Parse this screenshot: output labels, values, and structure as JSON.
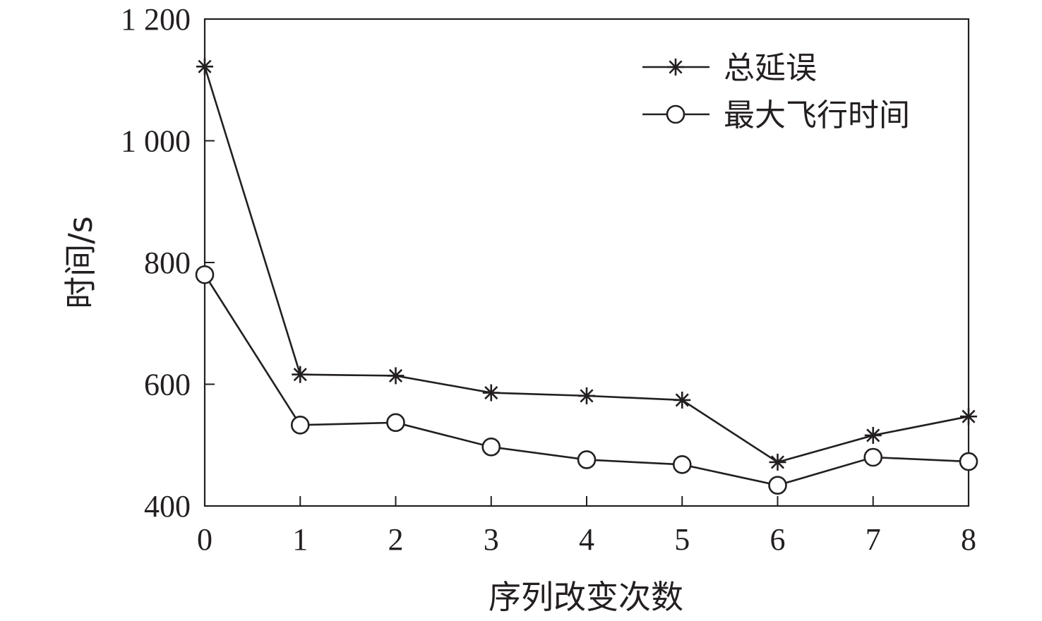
{
  "chart_data": {
    "type": "line",
    "categories": [
      "0",
      "1",
      "2",
      "3",
      "4",
      "5",
      "6",
      "7",
      "8"
    ],
    "x": [
      0,
      1,
      2,
      3,
      4,
      5,
      6,
      7,
      8
    ],
    "xlabel": "序列改变次数",
    "ylabel": "时间/s",
    "ylim": [
      400,
      1200
    ],
    "xlim": [
      0,
      8
    ],
    "yticks": [
      400,
      600,
      800,
      1000,
      1200
    ],
    "ytick_labels": [
      "400",
      "600",
      "800",
      "1 000",
      "1 200"
    ],
    "grid": false,
    "legend_position": "top-right",
    "series": [
      {
        "name": "总延误",
        "marker": "star",
        "color": "#231f20",
        "values": [
          1122,
          616,
          614,
          586,
          581,
          574,
          472,
          516,
          547
        ]
      },
      {
        "name": "最大飞行时间",
        "marker": "circle",
        "color": "#231f20",
        "values": [
          780,
          533,
          537,
          497,
          476,
          468,
          434,
          480,
          473
        ]
      }
    ]
  }
}
